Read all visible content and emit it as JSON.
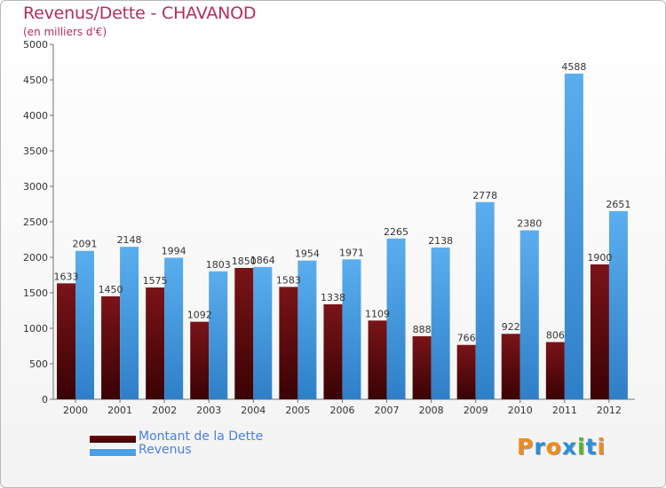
{
  "header": {
    "title": "Revenus/Dette - CHAVANOD",
    "subtitle": "(en milliers d'€)"
  },
  "colors": {
    "dette": "#6e0b0f",
    "revenus": "#4a9fe6",
    "title": "#b0305a",
    "legend_text": "#4a7fe0"
  },
  "legend": {
    "dette_label": "Montant de la Dette",
    "revenus_label": "Revenus"
  },
  "logo": {
    "text": "Proxiti",
    "letter_colors": [
      "#f08a1c",
      "#2a8fd8",
      "#f08a1c",
      "#2a8fd8",
      "#58b02e",
      "#2a8fd8",
      "#f08a1c"
    ]
  },
  "chart_data": {
    "type": "bar",
    "categories": [
      "2000",
      "2001",
      "2002",
      "2003",
      "2004",
      "2005",
      "2006",
      "2007",
      "2008",
      "2009",
      "2010",
      "2011",
      "2012"
    ],
    "series": [
      {
        "name": "Montant de la Dette",
        "values": [
          1633,
          1450,
          1575,
          1092,
          1850,
          1583,
          1338,
          1109,
          888,
          766,
          922,
          806,
          1900
        ]
      },
      {
        "name": "Revenus",
        "values": [
          2091,
          2148,
          1994,
          1803,
          1864,
          1954,
          1971,
          2265,
          2138,
          2778,
          2380,
          4588,
          2651
        ]
      }
    ],
    "title": "Revenus/Dette - CHAVANOD",
    "subtitle": "(en milliers d'€)",
    "ylim": [
      0,
      5000
    ],
    "yticks": [
      0,
      500,
      1000,
      1500,
      2000,
      2500,
      3000,
      3500,
      4000,
      4500,
      5000
    ],
    "grid": false,
    "legend_position": "bottom-left"
  }
}
